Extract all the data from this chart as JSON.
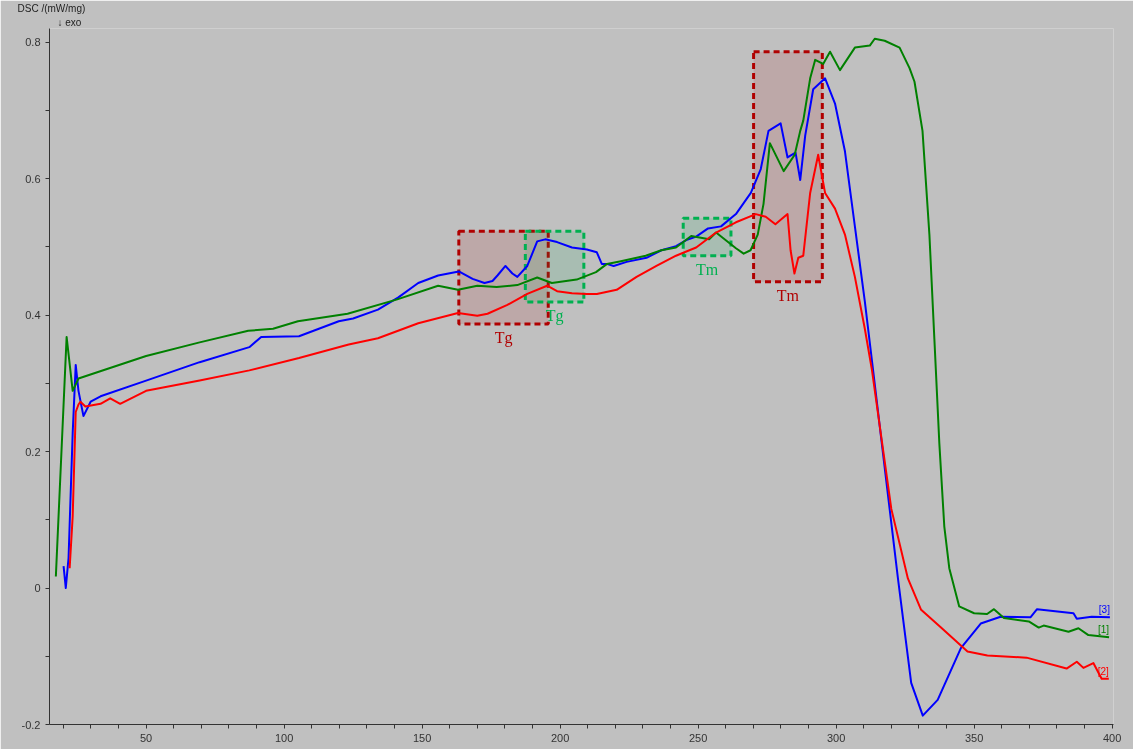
{
  "chart_data": {
    "type": "line",
    "ylabel": "DSC /(mW/mg)",
    "xlim": [
      15,
      400.5
    ],
    "ylim": [
      -0.2,
      0.82
    ],
    "xticks": [
      {
        "value": 20,
        "label": null
      },
      {
        "value": 30,
        "label": null
      },
      {
        "value": 40,
        "label": null
      },
      50,
      {
        "value": 60,
        "label": null
      },
      {
        "value": 70,
        "label": null
      },
      {
        "value": 80,
        "label": null
      },
      {
        "value": 90,
        "label": null
      },
      100,
      {
        "value": 110,
        "label": null
      },
      {
        "value": 120,
        "label": null
      },
      {
        "value": 130,
        "label": null
      },
      {
        "value": 140,
        "label": null
      },
      150,
      {
        "value": 160,
        "label": null
      },
      {
        "value": 170,
        "label": null
      },
      {
        "value": 180,
        "label": null
      },
      {
        "value": 190,
        "label": null
      },
      200,
      {
        "value": 210,
        "label": null
      },
      {
        "value": 220,
        "label": null
      },
      {
        "value": 230,
        "label": null
      },
      {
        "value": 240,
        "label": null
      },
      250,
      {
        "value": 260,
        "label": null
      },
      {
        "value": 270,
        "label": null
      },
      {
        "value": 280,
        "label": null
      },
      {
        "value": 290,
        "label": null
      },
      300,
      {
        "value": 310,
        "label": null
      },
      {
        "value": 320,
        "label": null
      },
      {
        "value": 330,
        "label": null
      },
      {
        "value": 340,
        "label": null
      },
      350,
      {
        "value": 360,
        "label": null
      },
      {
        "value": 370,
        "label": null
      },
      {
        "value": 380,
        "label": null
      },
      {
        "value": 390,
        "label": null
      },
      400
    ],
    "yticks": [
      {
        "value": -0.2,
        "label": "-0.2"
      },
      {
        "value": -0.1,
        "label": null
      },
      0,
      {
        "value": 0.1,
        "label": null
      },
      0.2,
      {
        "value": 0.3,
        "label": null
      },
      0.4,
      {
        "value": 0.5,
        "label": null
      },
      0.6,
      {
        "value": 0.7,
        "label": null
      },
      0.8
    ],
    "grid": false,
    "marker": "none",
    "line_style": "solid",
    "annotations": [
      "↓ exo"
    ],
    "bands": [
      {
        "axis": "x",
        "from": 163.3,
        "to": 195.7,
        "label": "Tg",
        "color": "#b00000"
      },
      {
        "axis": "x",
        "from": 187.4,
        "to": 208.6,
        "label": "Tg",
        "color": "#00b050"
      },
      {
        "axis": "x",
        "from": 244.6,
        "to": 261.9,
        "label": "Tm",
        "color": "#00b050"
      },
      {
        "axis": "x",
        "from": 270.1,
        "to": 295.0,
        "label": "Tm",
        "color": "#b00000"
      }
    ],
    "series": [
      {
        "name": "[3]",
        "color": "#0000ff",
        "x": [
          20.1,
          20.9,
          21.9,
          23.4,
          24.5,
          25.5,
          27.3,
          29.9,
          33.5,
          50,
          69.4,
          87.4,
          91.7,
          105.4,
          112.6,
          119.8,
          125,
          134,
          141.4,
          148.6,
          155.8,
          163.3,
          168.3,
          172.6,
          175.5,
          177.3,
          180.2,
          182.7,
          184.5,
          188.1,
          191.7,
          194.6,
          198.9,
          204.3,
          209.7,
          213.3,
          215.1,
          216.9,
          219.4,
          224.1,
          231.3,
          236.7,
          242,
          245.7,
          249.3,
          253.6,
          258.3,
          263.7,
          269.1,
          272.7,
          275.5,
          279.9,
          282.4,
          285.3,
          287,
          288.8,
          291.7,
          296,
          299.6,
          303.2,
          306.8,
          310.4,
          313.4,
          316.4,
          322.4,
          327.2,
          331.4,
          336.8,
          345.2,
          352.4,
          359.6,
          370.4,
          372.8,
          386,
          387.2,
          392.6,
          399.2
        ],
        "values": [
          0.032,
          0.0,
          0.044,
          0.227,
          0.327,
          0.289,
          0.252,
          0.273,
          0.281,
          0.304,
          0.331,
          0.353,
          0.368,
          0.369,
          0.38,
          0.391,
          0.395,
          0.408,
          0.426,
          0.447,
          0.458,
          0.464,
          0.453,
          0.447,
          0.45,
          0.458,
          0.472,
          0.461,
          0.456,
          0.472,
          0.508,
          0.511,
          0.507,
          0.499,
          0.496,
          0.492,
          0.475,
          0.475,
          0.472,
          0.478,
          0.484,
          0.495,
          0.501,
          0.51,
          0.515,
          0.527,
          0.53,
          0.548,
          0.579,
          0.614,
          0.67,
          0.681,
          0.631,
          0.638,
          0.598,
          0.663,
          0.731,
          0.747,
          0.71,
          0.64,
          0.53,
          0.42,
          0.319,
          0.217,
          0.014,
          -0.139,
          -0.187,
          -0.164,
          -0.088,
          -0.052,
          -0.042,
          -0.043,
          -0.031,
          -0.037,
          -0.045,
          -0.042,
          -0.043
        ]
      },
      {
        "name": "[1]",
        "color": "#008000",
        "x": [
          17.3,
          21.2,
          23.4,
          25.5,
          50,
          69.4,
          87,
          96,
          105,
          123,
          141,
          155.8,
          163,
          170,
          177,
          184.5,
          191.7,
          197,
          206,
          213,
          217,
          222,
          231,
          236.7,
          242,
          247.5,
          254,
          256.5,
          263.7,
          266.5,
          269,
          271.6,
          273.7,
          276,
          281,
          285,
          287,
          288.1,
          290.6,
          292.4,
          295.3,
          297.8,
          301.4,
          306.8,
          312.2,
          314,
          317.6,
          323,
          326.6,
          328.4,
          331.3,
          333.8,
          335.6,
          337.4,
          339.2,
          341,
          344.6,
          350,
          354.7,
          357.2,
          360.8,
          369.8,
          373.4,
          375.2,
          384.2,
          387.8,
          391.4,
          398.9
        ],
        "values": [
          0.017,
          0.368,
          0.289,
          0.307,
          0.34,
          0.36,
          0.377,
          0.38,
          0.391,
          0.402,
          0.423,
          0.443,
          0.437,
          0.443,
          0.441,
          0.444,
          0.455,
          0.447,
          0.452,
          0.463,
          0.475,
          0.479,
          0.487,
          0.495,
          0.499,
          0.516,
          0.511,
          0.521,
          0.498,
          0.49,
          0.495,
          0.518,
          0.563,
          0.652,
          0.611,
          0.635,
          0.67,
          0.685,
          0.747,
          0.774,
          0.768,
          0.786,
          0.759,
          0.792,
          0.795,
          0.805,
          0.802,
          0.792,
          0.762,
          0.742,
          0.67,
          0.518,
          0.365,
          0.212,
          0.09,
          0.029,
          -0.027,
          -0.037,
          -0.038,
          -0.031,
          -0.044,
          -0.049,
          -0.058,
          -0.055,
          -0.064,
          -0.059,
          -0.069,
          -0.072
        ]
      },
      {
        "name": "[2]",
        "color": "#ff0000",
        "x": [
          22.3,
          23.4,
          24.5,
          25.5,
          26.2,
          28,
          33.5,
          37,
          40.6,
          50,
          69.4,
          87.4,
          105.4,
          123.4,
          134,
          148.6,
          163,
          170,
          173.7,
          180.9,
          188.1,
          195.3,
          198.9,
          204.3,
          209.7,
          213.3,
          220.5,
          227.7,
          234.9,
          242,
          249.3,
          256.5,
          263.7,
          270.9,
          274.5,
          278,
          282.4,
          283.5,
          284.9,
          286.3,
          288.1,
          290.6,
          293.5,
          296,
          299.6,
          303.2,
          306.8,
          310.4,
          313,
          320,
          326,
          330.8,
          338,
          347.6,
          354.8,
          369,
          383.5,
          387.2,
          389.6,
          393.2,
          396.2,
          398.8
        ],
        "values": [
          0.029,
          0.105,
          0.258,
          0.269,
          0.273,
          0.266,
          0.27,
          0.278,
          0.27,
          0.289,
          0.304,
          0.319,
          0.337,
          0.357,
          0.366,
          0.388,
          0.403,
          0.399,
          0.402,
          0.415,
          0.431,
          0.443,
          0.435,
          0.432,
          0.431,
          0.431,
          0.437,
          0.456,
          0.472,
          0.487,
          0.499,
          0.521,
          0.536,
          0.548,
          0.544,
          0.533,
          0.548,
          0.495,
          0.461,
          0.484,
          0.487,
          0.579,
          0.635,
          0.579,
          0.556,
          0.518,
          0.456,
          0.38,
          0.319,
          0.116,
          0.014,
          -0.032,
          -0.058,
          -0.093,
          -0.099,
          -0.102,
          -0.118,
          -0.108,
          -0.117,
          -0.11,
          -0.133,
          -0.133
        ]
      }
    ]
  }
}
